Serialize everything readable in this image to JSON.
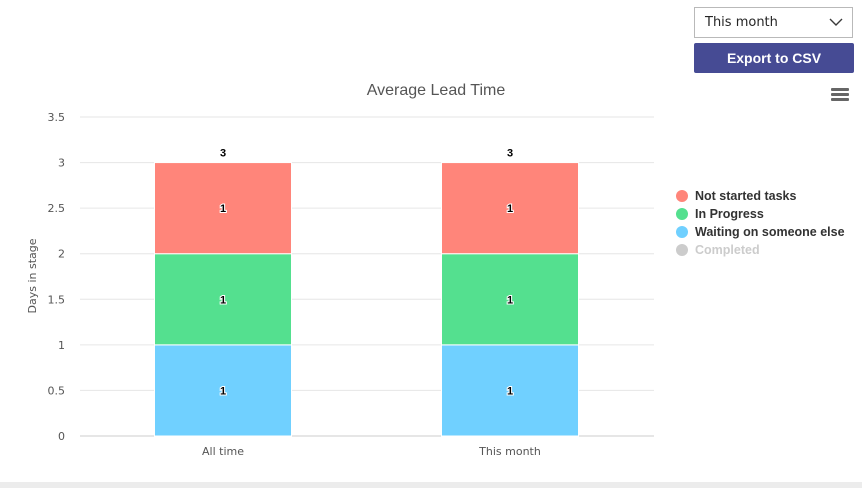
{
  "filter": {
    "selected": "This month"
  },
  "toolbar": {
    "export_label": "Export to CSV"
  },
  "colors": {
    "not_started": "#ff857a",
    "in_progress": "#54e08f",
    "waiting": "#70d0ff",
    "completed_inactive": "#cccccc",
    "export_button": "#464b94"
  },
  "icons": {
    "dropdown": "chevron-down-icon",
    "chart_menu": "hamburger-menu-icon"
  },
  "chart_data": {
    "type": "bar",
    "stacked": true,
    "title": "Average Lead Time",
    "ylabel": "Days in stage",
    "xlabel": "",
    "ylim": [
      0,
      3.5
    ],
    "ytick_step": 0.5,
    "yticks": [
      "0",
      "0.5",
      "1",
      "1.5",
      "2",
      "2.5",
      "3",
      "3.5"
    ],
    "grid": true,
    "legend_position": "right",
    "categories": [
      "All time",
      "This month"
    ],
    "totals": [
      "3",
      "3"
    ],
    "series": [
      {
        "name": "Waiting on someone else",
        "values": [
          1,
          1
        ],
        "labels": [
          "1",
          "1"
        ],
        "color": "#70d0ff",
        "visible": true
      },
      {
        "name": "In Progress",
        "values": [
          1,
          1
        ],
        "labels": [
          "1",
          "1"
        ],
        "color": "#54e08f",
        "visible": true
      },
      {
        "name": "Not started tasks",
        "values": [
          1,
          1
        ],
        "labels": [
          "1",
          "1"
        ],
        "color": "#ff857a",
        "visible": true
      },
      {
        "name": "Completed",
        "values": [
          0,
          0
        ],
        "labels": [
          "",
          ""
        ],
        "color": "#cccccc",
        "visible": false
      }
    ],
    "legend_order": [
      "Not started tasks",
      "In Progress",
      "Waiting on someone else",
      "Completed"
    ]
  }
}
